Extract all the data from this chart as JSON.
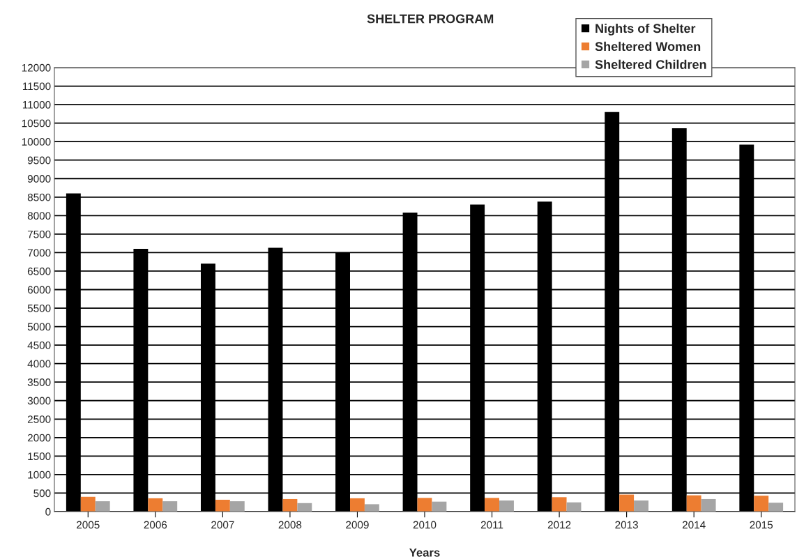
{
  "chart_data": {
    "type": "bar",
    "title": "SHELTER PROGRAM",
    "xlabel": "Years",
    "categories": [
      "2005",
      "2006",
      "2007",
      "2008",
      "2009",
      "2010",
      "2011",
      "2012",
      "2013",
      "2014",
      "2015"
    ],
    "series": [
      {
        "name": "Nights of Shelter",
        "color": "#000000",
        "values": [
          8600,
          7100,
          6700,
          7130,
          7000,
          8080,
          8300,
          8380,
          10800,
          10360,
          9920
        ]
      },
      {
        "name": "Sheltered Women",
        "color": "#ed7d31",
        "values": [
          400,
          360,
          320,
          340,
          360,
          370,
          370,
          390,
          460,
          440,
          430
        ]
      },
      {
        "name": "Sheltered Children",
        "color": "#a5a5a5",
        "values": [
          280,
          280,
          280,
          230,
          200,
          270,
          300,
          250,
          300,
          340,
          240
        ]
      }
    ],
    "ylim": [
      0,
      12000
    ],
    "yticks": [
      0,
      500,
      1000,
      1500,
      2000,
      2500,
      3000,
      3500,
      4000,
      4500,
      5000,
      5500,
      6000,
      6500,
      7000,
      7500,
      8000,
      8500,
      9000,
      9500,
      10000,
      10500,
      11000,
      11500,
      12000
    ],
    "grid": "y",
    "legend": "top right"
  }
}
